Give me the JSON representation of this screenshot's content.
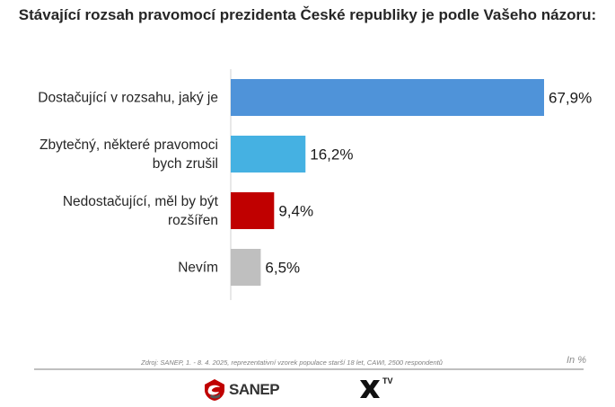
{
  "title": "Stávající rozsah pravomocí prezidenta České republiky je podle Vašeho názoru:",
  "source": "Zdroj: SANEP, 1. - 8. 4. 2025, reprezentativní vzorek populace starší 18 let, CAWI, 2500 respondentů",
  "unit": "In %",
  "logos": {
    "sanep": "SANEP",
    "xtv": "TV"
  },
  "chart_data": {
    "type": "bar",
    "orientation": "horizontal",
    "categories": [
      [
        "Dostačující v rozsahu, jaký je"
      ],
      [
        "Zbytečný, některé pravomoci",
        "bych zrušil"
      ],
      [
        "Nedostačující, měl by být",
        "rozšířen"
      ],
      [
        "Nevím"
      ]
    ],
    "values": [
      67.9,
      16.2,
      9.4,
      6.5
    ],
    "value_labels": [
      "67,9%",
      "16,2%",
      "9,4%",
      "6,5%"
    ],
    "colors": [
      "#4f93d9",
      "#45b1e2",
      "#c00000",
      "#bfbfbf"
    ],
    "xlim": [
      0,
      70
    ],
    "grid": false,
    "legend": "none"
  }
}
